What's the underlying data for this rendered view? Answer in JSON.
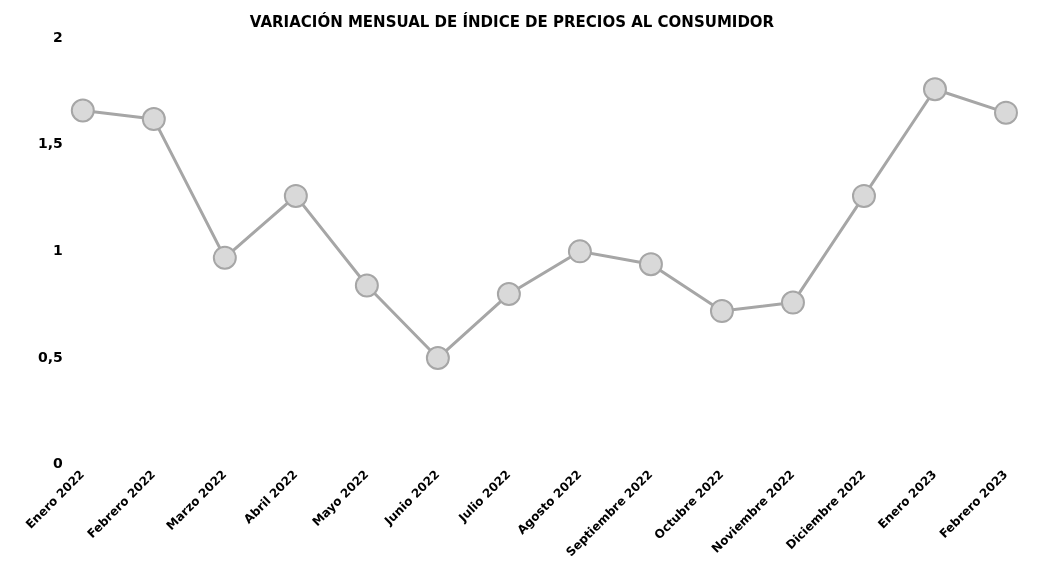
{
  "chart_data": {
    "type": "line",
    "title": "VARIACIÓN MENSUAL DE ÍNDICE DE PRECIOS AL CONSUMIDOR",
    "categories": [
      "Enero 2022",
      "Febrero 2022",
      "Marzo 2022",
      "Abril 2022",
      "Mayo 2022",
      "Junio 2022",
      "Julio 2022",
      "Agosto 2022",
      "Septiembre 2022",
      "Octubre 2022",
      "Noviembre 2022",
      "Diciembre 2022",
      "Enero 2023",
      "Febrero 2023"
    ],
    "series": [
      {
        "color": "#a6a6a6",
        "values": [
          1.66,
          1.62,
          0.97,
          1.26,
          0.84,
          0.5,
          0.8,
          1.0,
          0.94,
          0.72,
          0.76,
          1.26,
          1.76,
          1.65
        ]
      }
    ],
    "ylim": [
      0,
      2
    ],
    "yticks": [
      0,
      {
        "value": 0.5,
        "label": "0,5"
      },
      1,
      {
        "value": 1.5,
        "label": "1,5"
      },
      2
    ],
    "grid": false,
    "legend": false,
    "marker": "circle",
    "line_style": "solid"
  }
}
